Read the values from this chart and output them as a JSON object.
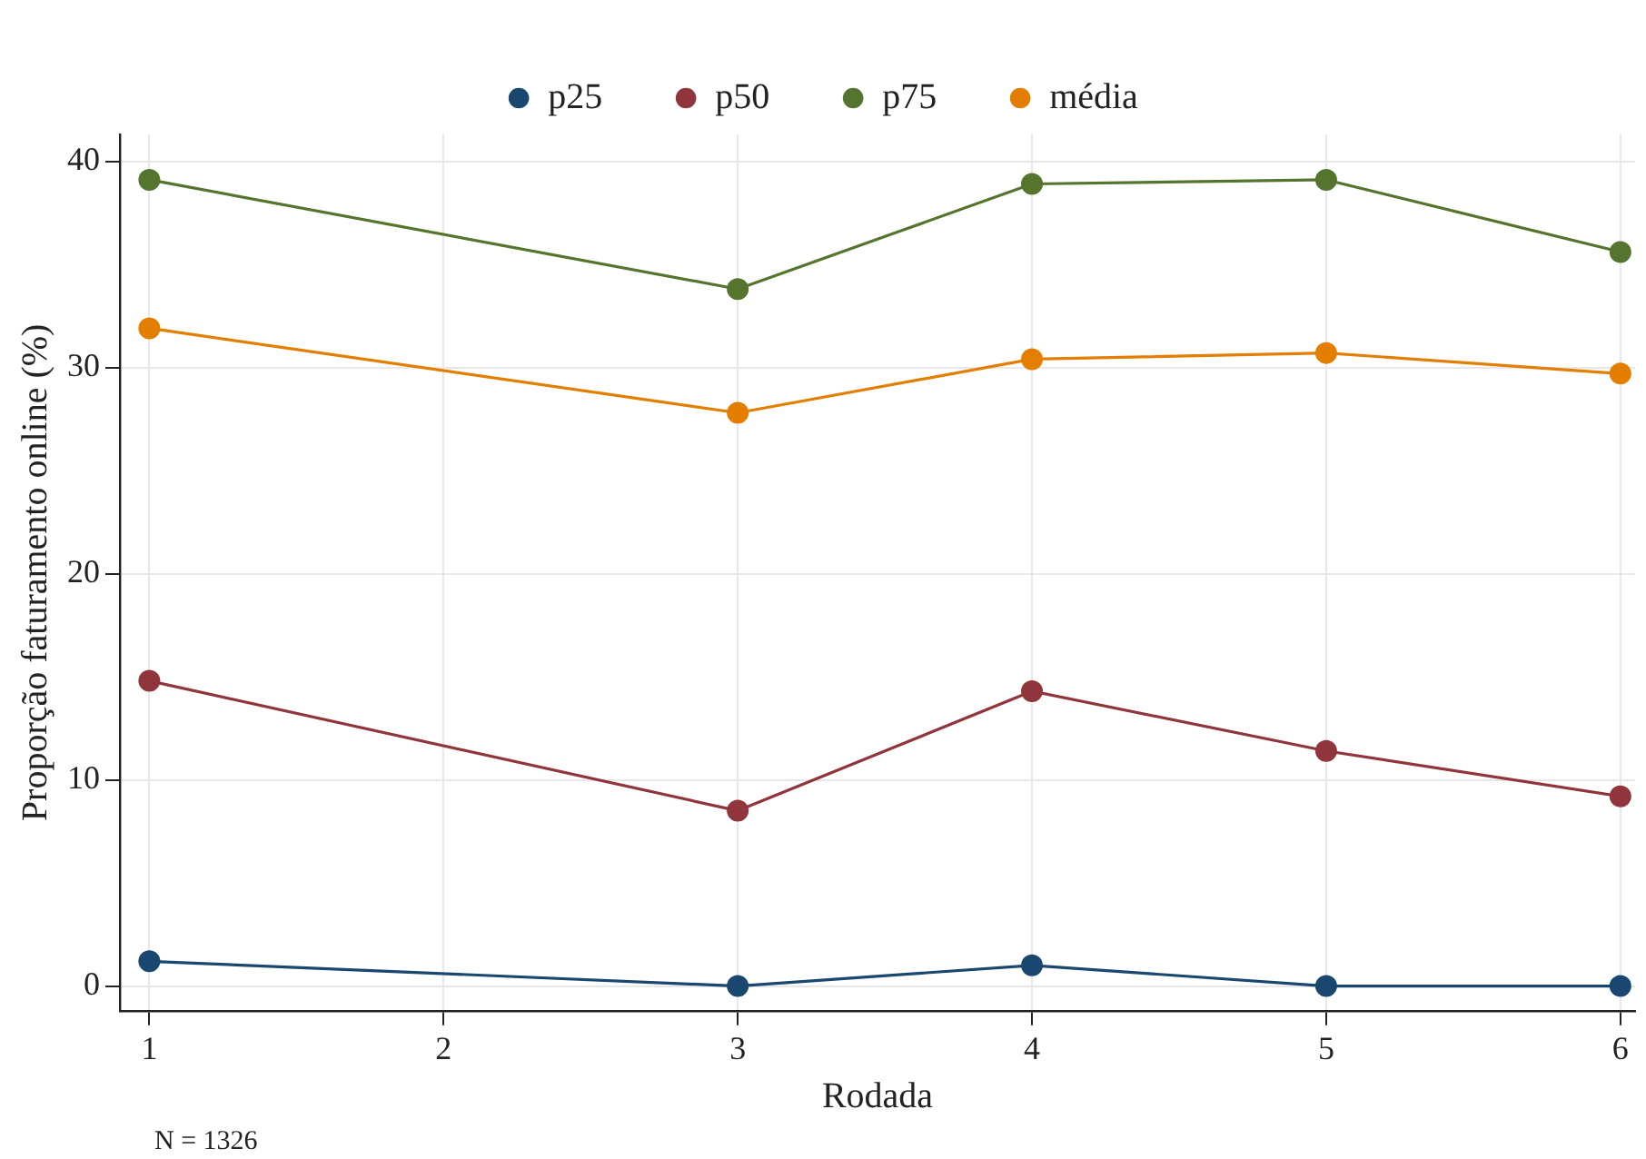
{
  "chart_data": {
    "type": "line",
    "xlabel": "Rodada",
    "ylabel": "Proporção faturamento online (%)",
    "annotations": [
      "N = 1326"
    ],
    "x": [
      1,
      3,
      4,
      5,
      6
    ],
    "series": [
      {
        "name": "p25",
        "color": "#1a476f",
        "values": [
          1.2,
          0,
          1.0,
          0,
          0
        ]
      },
      {
        "name": "p50",
        "color": "#90353b",
        "values": [
          14.8,
          8.5,
          14.3,
          11.4,
          9.2
        ]
      },
      {
        "name": "p75",
        "color": "#55752f",
        "values": [
          39.1,
          33.8,
          38.9,
          39.1,
          35.6
        ]
      },
      {
        "name": "média",
        "color": "#e37e00",
        "values": [
          31.9,
          27.8,
          30.4,
          30.7,
          29.7
        ]
      }
    ],
    "xlim": [
      0.9,
      6.05
    ],
    "xticks": [
      1,
      2,
      3,
      4,
      5,
      6
    ],
    "ylim": [
      -1.2,
      41.3
    ],
    "yticks": [
      0,
      10,
      20,
      30,
      40
    ],
    "grid": true,
    "legend": "top",
    "marker": "circle",
    "line_style": "solid"
  }
}
